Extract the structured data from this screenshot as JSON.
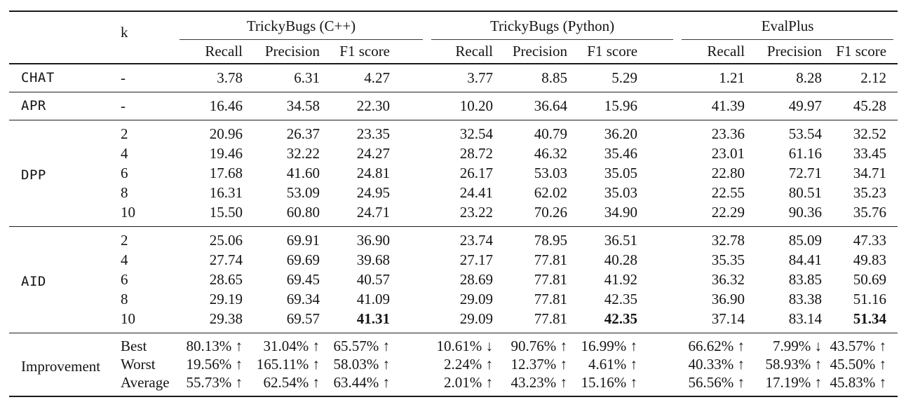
{
  "table": {
    "k_header": "k",
    "groups": [
      {
        "label": "TrickyBugs (C++)"
      },
      {
        "label": "TrickyBugs (Python)"
      },
      {
        "label": "EvalPlus"
      }
    ],
    "sub_headers": [
      "Recall",
      "Precision",
      "F1 score"
    ],
    "sections": [
      {
        "method": "CHAT",
        "method_font": "mono",
        "rows": [
          {
            "k": "-",
            "cpp": [
              "3.78",
              "6.31",
              "4.27"
            ],
            "python": [
              "3.77",
              "8.85",
              "5.29"
            ],
            "evalplus": [
              "1.21",
              "8.28",
              "2.12"
            ]
          }
        ]
      },
      {
        "method": "APR",
        "method_font": "mono",
        "rows": [
          {
            "k": "-",
            "cpp": [
              "16.46",
              "34.58",
              "22.30"
            ],
            "python": [
              "10.20",
              "36.64",
              "15.96"
            ],
            "evalplus": [
              "41.39",
              "49.97",
              "45.28"
            ]
          }
        ]
      },
      {
        "method": "DPP",
        "method_font": "mono",
        "rows": [
          {
            "k": "2",
            "cpp": [
              "20.96",
              "26.37",
              "23.35"
            ],
            "python": [
              "32.54",
              "40.79",
              "36.20"
            ],
            "evalplus": [
              "23.36",
              "53.54",
              "32.52"
            ]
          },
          {
            "k": "4",
            "cpp": [
              "19.46",
              "32.22",
              "24.27"
            ],
            "python": [
              "28.72",
              "46.32",
              "35.46"
            ],
            "evalplus": [
              "23.01",
              "61.16",
              "33.45"
            ]
          },
          {
            "k": "6",
            "cpp": [
              "17.68",
              "41.60",
              "24.81"
            ],
            "python": [
              "26.17",
              "53.03",
              "35.05"
            ],
            "evalplus": [
              "22.80",
              "72.71",
              "34.71"
            ]
          },
          {
            "k": "8",
            "cpp": [
              "16.31",
              "53.09",
              "24.95"
            ],
            "python": [
              "24.41",
              "62.02",
              "35.03"
            ],
            "evalplus": [
              "22.55",
              "80.51",
              "35.23"
            ]
          },
          {
            "k": "10",
            "cpp": [
              "15.50",
              "60.80",
              "24.71"
            ],
            "python": [
              "23.22",
              "70.26",
              "34.90"
            ],
            "evalplus": [
              "22.29",
              "90.36",
              "35.76"
            ]
          }
        ]
      },
      {
        "method": "AID",
        "method_font": "mono",
        "rows": [
          {
            "k": "2",
            "cpp": [
              "25.06",
              "69.91",
              "36.90"
            ],
            "python": [
              "23.74",
              "78.95",
              "36.51"
            ],
            "evalplus": [
              "32.78",
              "85.09",
              "47.33"
            ]
          },
          {
            "k": "4",
            "cpp": [
              "27.74",
              "69.69",
              "39.68"
            ],
            "python": [
              "27.17",
              "77.81",
              "40.28"
            ],
            "evalplus": [
              "35.35",
              "84.41",
              "49.83"
            ]
          },
          {
            "k": "6",
            "cpp": [
              "28.65",
              "69.45",
              "40.57"
            ],
            "python": [
              "28.69",
              "77.81",
              "41.92"
            ],
            "evalplus": [
              "36.32",
              "83.85",
              "50.69"
            ]
          },
          {
            "k": "8",
            "cpp": [
              "29.19",
              "69.34",
              "41.09"
            ],
            "python": [
              "29.09",
              "77.81",
              "42.35"
            ],
            "evalplus": [
              "36.90",
              "83.38",
              "51.16"
            ]
          },
          {
            "k": "10",
            "cpp": [
              "29.38",
              "69.57",
              "41.31"
            ],
            "python": [
              "29.09",
              "77.81",
              "42.35"
            ],
            "evalplus": [
              "37.14",
              "83.14",
              "51.34"
            ],
            "bold": {
              "cpp": [
                2
              ],
              "python": [
                2
              ],
              "evalplus": [
                2
              ]
            }
          }
        ]
      },
      {
        "method": "Improvement",
        "method_font": "serif",
        "rows": [
          {
            "k": "Best",
            "cpp": [
              "80.13% ↑",
              "31.04% ↑",
              "65.57% ↑"
            ],
            "python": [
              "10.61% ↓",
              "90.76% ↑",
              "16.99% ↑"
            ],
            "evalplus": [
              "66.62% ↑",
              "7.99% ↓",
              "43.57% ↑"
            ]
          },
          {
            "k": "Worst",
            "cpp": [
              "19.56% ↑",
              "165.11% ↑",
              "58.03% ↑"
            ],
            "python": [
              "2.24% ↑",
              "12.37% ↑",
              "4.61% ↑"
            ],
            "evalplus": [
              "40.33% ↑",
              "58.93% ↑",
              "45.50% ↑"
            ]
          },
          {
            "k": "Average",
            "cpp": [
              "55.73% ↑",
              "62.54% ↑",
              "63.44% ↑"
            ],
            "python": [
              "2.01% ↑",
              "43.23% ↑",
              "15.16% ↑"
            ],
            "evalplus": [
              "56.56% ↑",
              "17.19% ↑",
              "45.83% ↑"
            ]
          }
        ]
      }
    ]
  }
}
